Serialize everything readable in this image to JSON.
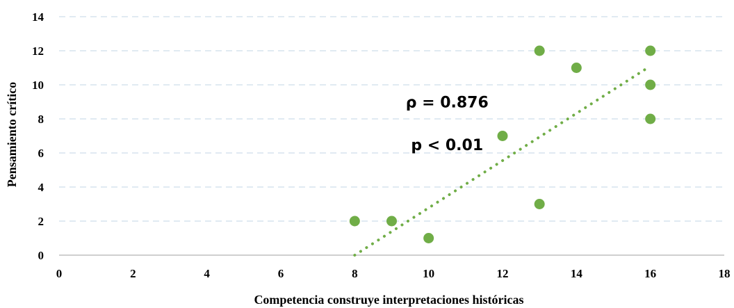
{
  "chart_data": {
    "type": "scatter",
    "title": "",
    "xlabel": "Competencia construye interpretaciones históricas",
    "ylabel": "Pensamiento crítico",
    "xlim": [
      0,
      18
    ],
    "ylim": [
      0,
      14
    ],
    "x_ticks": [
      "0",
      "2",
      "4",
      "6",
      "8",
      "10",
      "12",
      "14",
      "16",
      "18"
    ],
    "y_ticks": [
      "0",
      "2",
      "4",
      "6",
      "8",
      "10",
      "12",
      "14"
    ],
    "grid": "horizontal dashed",
    "series": [
      {
        "points": [
          {
            "x": 8,
            "y": 2
          },
          {
            "x": 9,
            "y": 2
          },
          {
            "x": 10,
            "y": 1
          },
          {
            "x": 12,
            "y": 7
          },
          {
            "x": 13,
            "y": 12
          },
          {
            "x": 13,
            "y": 3
          },
          {
            "x": 14,
            "y": 11
          },
          {
            "x": 16,
            "y": 12
          },
          {
            "x": 16,
            "y": 10
          },
          {
            "x": 16,
            "y": 8
          }
        ],
        "color": "#70ad47"
      }
    ],
    "trendline": {
      "style": "dotted",
      "color": "#70ad47",
      "from": {
        "x": 8,
        "y": 0
      },
      "to": {
        "x": 16,
        "y": 11.1
      }
    },
    "annotations": [
      {
        "text": "ρ = 0.876",
        "x": 10.5,
        "y": 9
      },
      {
        "text": "p < 0.01",
        "x": 10.5,
        "y": 6.5
      }
    ]
  }
}
